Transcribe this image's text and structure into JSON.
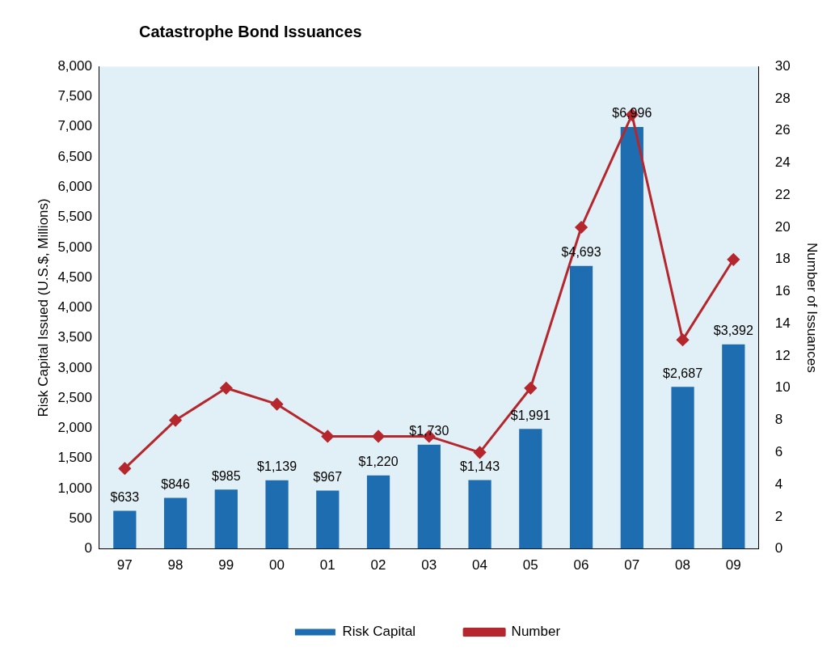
{
  "chart_data": {
    "type": "bar",
    "title": "Catastrophe Bond Issuances",
    "ylabel": "Risk Capital Issued (U.S.$, Millions)",
    "y2label": "Number of Issuances",
    "categories": [
      "97",
      "98",
      "99",
      "00",
      "01",
      "02",
      "03",
      "04",
      "05",
      "06",
      "07",
      "08",
      "09"
    ],
    "series": [
      {
        "name": "Risk Capital",
        "color": "#1f6db1",
        "values": [
          633,
          846,
          985,
          1139,
          967,
          1220,
          1730,
          1143,
          1991,
          4693,
          6996,
          2687,
          3392
        ],
        "value_labels": [
          "$633",
          "$846",
          "$985",
          "$1,139",
          "$967",
          "$1,220",
          "$1,730",
          "$1,143",
          "$1,991",
          "$4,693",
          "$6,996",
          "$2,687",
          "$3,392"
        ]
      },
      {
        "name": "Number",
        "type": "line",
        "axis": "y2",
        "color": "#b5272d",
        "marker": "diamond",
        "values": [
          5,
          8,
          10,
          9,
          7,
          7,
          7,
          6,
          10,
          20,
          27,
          13,
          18
        ]
      }
    ],
    "ylim": [
      0,
      8000
    ],
    "yticks": [
      0,
      500,
      {
        "value": 1000,
        "label": "1,000"
      },
      {
        "value": 1500,
        "label": "1,500"
      },
      {
        "value": 2000,
        "label": "2,000"
      },
      {
        "value": 2500,
        "label": "2,500"
      },
      {
        "value": 3000,
        "label": "3,000"
      },
      {
        "value": 3500,
        "label": "3,500"
      },
      {
        "value": 4000,
        "label": "4,000"
      },
      {
        "value": 4500,
        "label": "4,500"
      },
      {
        "value": 5000,
        "label": "5,000"
      },
      {
        "value": 5500,
        "label": "5,500"
      },
      {
        "value": 6000,
        "label": "6,000"
      },
      {
        "value": 6500,
        "label": "6,500"
      },
      {
        "value": 7000,
        "label": "7,000"
      },
      {
        "value": 7500,
        "label": "7,500"
      },
      {
        "value": 8000,
        "label": "8,000"
      }
    ],
    "y2lim": [
      0,
      30
    ],
    "y2ticks": [
      0,
      2,
      4,
      6,
      8,
      10,
      12,
      14,
      16,
      18,
      20,
      22,
      24,
      26,
      28,
      30
    ],
    "legend": "bottom"
  }
}
